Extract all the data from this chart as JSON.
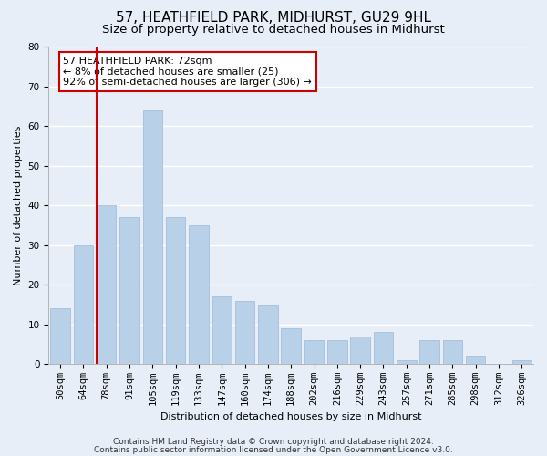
{
  "title1": "57, HEATHFIELD PARK, MIDHURST, GU29 9HL",
  "title2": "Size of property relative to detached houses in Midhurst",
  "xlabel": "Distribution of detached houses by size in Midhurst",
  "ylabel": "Number of detached properties",
  "categories": [
    "50sqm",
    "64sqm",
    "78sqm",
    "91sqm",
    "105sqm",
    "119sqm",
    "133sqm",
    "147sqm",
    "160sqm",
    "174sqm",
    "188sqm",
    "202sqm",
    "216sqm",
    "229sqm",
    "243sqm",
    "257sqm",
    "271sqm",
    "285sqm",
    "298sqm",
    "312sqm",
    "326sqm"
  ],
  "values": [
    14,
    30,
    40,
    37,
    64,
    37,
    35,
    17,
    16,
    15,
    9,
    6,
    6,
    7,
    8,
    1,
    6,
    6,
    2,
    0,
    1
  ],
  "bar_color": "#b8d0e8",
  "bar_edge_color": "#9ab8d8",
  "vline_color": "#cc0000",
  "vline_pos": 1.57,
  "annotation_text_line1": "57 HEATHFIELD PARK: 72sqm",
  "annotation_text_line2": "← 8% of detached houses are smaller (25)",
  "annotation_text_line3": "92% of semi-detached houses are larger (306) →",
  "annotation_box_color": "#cc0000",
  "ylim": [
    0,
    80
  ],
  "yticks": [
    0,
    10,
    20,
    30,
    40,
    50,
    60,
    70,
    80
  ],
  "footer1": "Contains HM Land Registry data © Crown copyright and database right 2024.",
  "footer2": "Contains public sector information licensed under the Open Government Licence v3.0.",
  "background_color": "#e8eef8",
  "plot_bg_color": "#e8eef8",
  "grid_color": "#ffffff",
  "title_fontsize": 11,
  "subtitle_fontsize": 9.5,
  "axis_label_fontsize": 8,
  "tick_fontsize": 7.5,
  "annotation_fontsize": 8,
  "footer_fontsize": 6.5
}
